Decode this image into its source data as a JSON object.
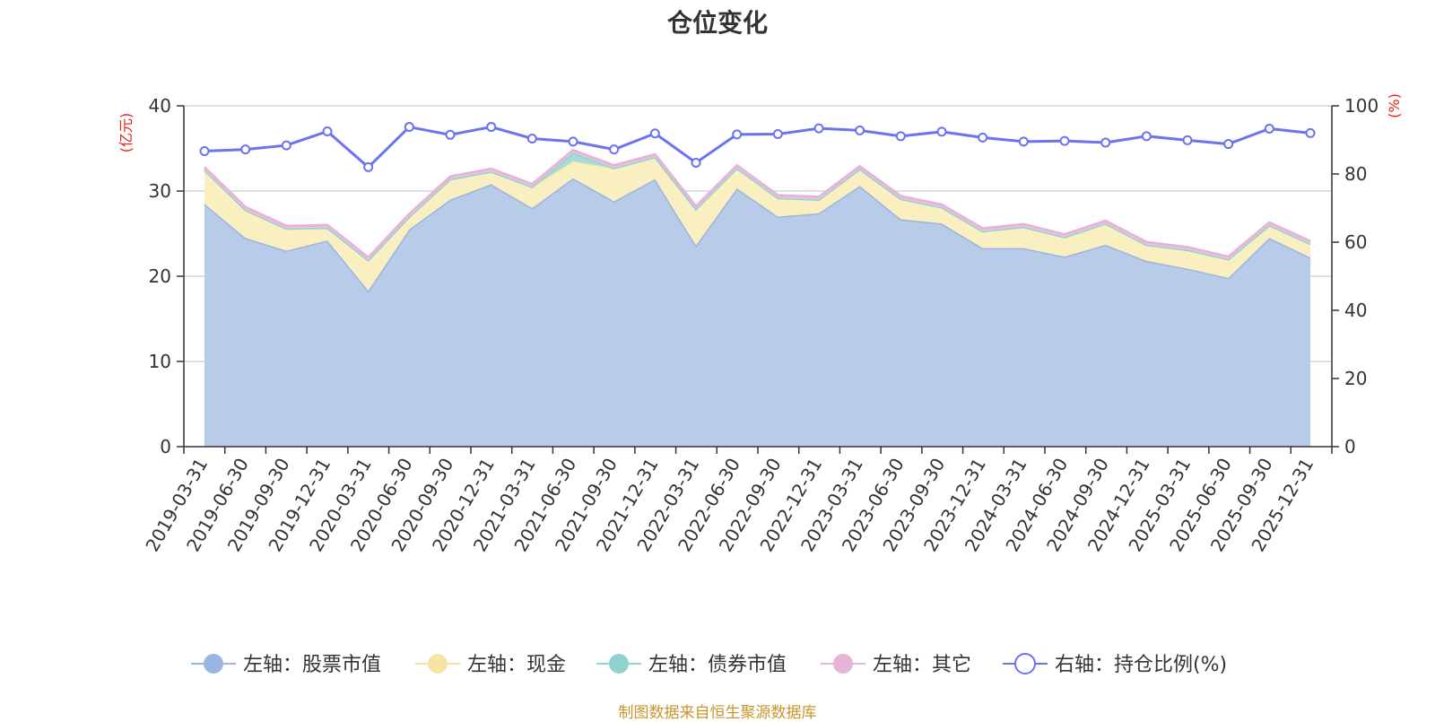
{
  "chart_data": {
    "type": "area",
    "title": "仓位变化",
    "source_note": "制图数据来自恒生聚源数据库",
    "left_axis": {
      "label": "(亿元)",
      "min": 0,
      "max": 40,
      "ticks": [
        0,
        10,
        20,
        30,
        40
      ]
    },
    "right_axis": {
      "label": "(%)",
      "min": 0,
      "max": 100,
      "ticks": [
        0,
        20,
        40,
        60,
        80,
        100
      ]
    },
    "categories": [
      "2019-03-31",
      "2019-06-30",
      "2019-09-30",
      "2019-12-31",
      "2020-03-31",
      "2020-06-30",
      "2020-09-30",
      "2020-12-31",
      "2021-03-31",
      "2021-06-30",
      "2021-09-30",
      "2021-12-31",
      "2022-03-31",
      "2022-06-30",
      "2022-09-30",
      "2022-12-31",
      "2023-03-31",
      "2023-06-30",
      "2023-09-30",
      "2023-12-31",
      "2024-03-31",
      "2024-06-30",
      "2024-09-30",
      "2024-12-31",
      "2025-03-31",
      "2025-06-30",
      "2025-09-30",
      "2025-12-31"
    ],
    "series": [
      {
        "name": "左轴：股票市值",
        "axis": "left",
        "stack": true,
        "color": "#9ab5df",
        "fill": "#b8cbe9",
        "values": [
          28.5,
          24.5,
          23.0,
          24.2,
          18.3,
          25.5,
          29.0,
          30.8,
          28.0,
          31.5,
          28.8,
          31.4,
          23.6,
          30.3,
          27.0,
          27.4,
          30.6,
          26.7,
          26.2,
          23.3,
          23.3,
          22.3,
          23.7,
          21.8,
          20.9,
          19.8,
          24.5,
          22.2
        ]
      },
      {
        "name": "左轴：现金",
        "axis": "left",
        "stack": true,
        "color": "#f7e4a2",
        "fill": "#faefc0",
        "values": [
          4.0,
          3.3,
          2.6,
          1.5,
          3.6,
          1.5,
          2.4,
          1.5,
          2.5,
          2.0,
          3.9,
          2.6,
          4.3,
          2.4,
          2.2,
          1.6,
          2.0,
          2.4,
          1.9,
          2.0,
          2.5,
          2.3,
          2.5,
          1.9,
          2.2,
          2.2,
          1.5,
          1.6
        ]
      },
      {
        "name": "左轴：债券市值",
        "axis": "left",
        "stack": true,
        "color": "#8fd3cf",
        "fill": "#a3dcd8",
        "values": [
          0,
          0,
          0,
          0,
          0,
          0,
          0,
          0,
          0,
          1.0,
          0,
          0,
          0,
          0,
          0,
          0,
          0,
          0,
          0,
          0,
          0,
          0,
          0,
          0,
          0,
          0,
          0,
          0
        ]
      },
      {
        "name": "左轴：其它",
        "axis": "left",
        "stack": true,
        "color": "#e6b4d8",
        "fill": "#eec8e2",
        "values": [
          0.3,
          0.3,
          0.3,
          0.3,
          0.3,
          0.3,
          0.3,
          0.3,
          0.3,
          0.3,
          0.3,
          0.3,
          0.3,
          0.3,
          0.3,
          0.3,
          0.3,
          0.3,
          0.3,
          0.3,
          0.3,
          0.3,
          0.3,
          0.3,
          0.3,
          0.3,
          0.3,
          0.3
        ]
      },
      {
        "name": "右轴：持仓比例(%)",
        "axis": "right",
        "stack": false,
        "color": "#6b73f0",
        "fill": "#ffffff",
        "values": [
          86.7,
          87.2,
          88.4,
          92.5,
          82.0,
          93.8,
          91.5,
          93.8,
          90.4,
          89.5,
          87.2,
          91.9,
          83.3,
          91.6,
          91.7,
          93.4,
          92.8,
          91.1,
          92.4,
          90.7,
          89.5,
          89.7,
          89.2,
          91.1,
          89.9,
          88.8,
          93.3,
          92.0
        ]
      }
    ]
  }
}
